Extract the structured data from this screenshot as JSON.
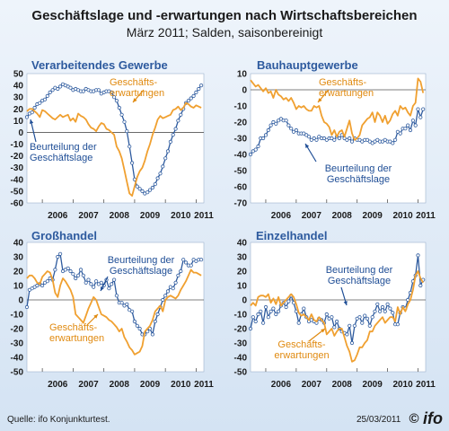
{
  "figure": {
    "title": "Geschäftslage und -erwartungen nach Wirtschaftsbereichen",
    "subtitle": "März 2011; Salden, saisonbereinigt",
    "source": "Quelle: ifo Konjunkturtest.",
    "date": "25/03/2011",
    "logo_text": "ifo",
    "copyright_symbol": "©"
  },
  "colors": {
    "lage": "#2d5a9e",
    "erwartungen": "#f0a030",
    "title_blue": "#2d5a9e",
    "annotation_lage": "#1f4e96",
    "annotation_erw": "#e08a10",
    "panel_bg": "#ffffff",
    "zero_line": "#555555"
  },
  "x_ticks": [
    "2006",
    "2007",
    "2008",
    "2009",
    "2010",
    "2011"
  ],
  "chart_data": [
    {
      "type": "line",
      "title": "Verarbeitendes Gewerbe",
      "ylim": [
        -60,
        50
      ],
      "y_ticks": [
        50,
        40,
        30,
        20,
        10,
        0,
        -10,
        -20,
        -30,
        -40,
        -50,
        -60
      ],
      "x": [
        "2005-07",
        "2005-08",
        "2005-09",
        "2005-10",
        "2005-11",
        "2005-12",
        "2006-01",
        "2006-02",
        "2006-03",
        "2006-04",
        "2006-05",
        "2006-06",
        "2006-07",
        "2006-08",
        "2006-09",
        "2006-10",
        "2006-11",
        "2006-12",
        "2007-01",
        "2007-02",
        "2007-03",
        "2007-04",
        "2007-05",
        "2007-06",
        "2007-07",
        "2007-08",
        "2007-09",
        "2007-10",
        "2007-11",
        "2007-12",
        "2008-01",
        "2008-02",
        "2008-03",
        "2008-04",
        "2008-05",
        "2008-06",
        "2008-07",
        "2008-08",
        "2008-09",
        "2008-10",
        "2008-11",
        "2008-12",
        "2009-01",
        "2009-02",
        "2009-03",
        "2009-04",
        "2009-05",
        "2009-06",
        "2009-07",
        "2009-08",
        "2009-09",
        "2009-10",
        "2009-11",
        "2009-12",
        "2010-01",
        "2010-02",
        "2010-03",
        "2010-04",
        "2010-05",
        "2010-06",
        "2010-07",
        "2010-08",
        "2010-09",
        "2010-10",
        "2010-11",
        "2010-12",
        "2011-01",
        "2011-02",
        "2011-03"
      ],
      "series": [
        {
          "name": "Beurteilung der Geschäftslage",
          "values": [
            13,
            16,
            17,
            21,
            24,
            25,
            27,
            28,
            31,
            34,
            36,
            38,
            37,
            39,
            41,
            40,
            39,
            38,
            36,
            37,
            36,
            35,
            35,
            37,
            36,
            35,
            35,
            36,
            36,
            33,
            34,
            35,
            35,
            34,
            30,
            27,
            21,
            15,
            9,
            1,
            -12,
            -26,
            -40,
            -46,
            -48,
            -50,
            -52,
            -51,
            -49,
            -47,
            -44,
            -39,
            -35,
            -29,
            -22,
            -16,
            -8,
            -2,
            3,
            10,
            15,
            20,
            25,
            27,
            29,
            31,
            34,
            37,
            40
          ]
        },
        {
          "name": "Geschäftserwartungen",
          "values": [
            18,
            20,
            20,
            18,
            16,
            13,
            19,
            18,
            16,
            14,
            12,
            11,
            13,
            15,
            13,
            14,
            15,
            10,
            12,
            9,
            16,
            14,
            13,
            11,
            7,
            4,
            3,
            1,
            5,
            8,
            7,
            3,
            2,
            0,
            -2,
            -12,
            -16,
            -22,
            -32,
            -42,
            -52,
            -54,
            -46,
            -38,
            -33,
            -30,
            -24,
            -16,
            -10,
            -2,
            4,
            11,
            14,
            12,
            13,
            14,
            15,
            19,
            20,
            22,
            19,
            21,
            25,
            24,
            22,
            21,
            23,
            22,
            21
          ]
        }
      ],
      "annotations": [
        {
          "text": "Geschäfts-",
          "series": "Geschäftserwartungen"
        },
        {
          "text": "erwartungen",
          "series": "Geschäftserwartungen"
        },
        {
          "text": "Beurteilung der",
          "series": "Beurteilung der Geschäftslage"
        },
        {
          "text": "Geschäftslage",
          "series": "Beurteilung der Geschäftslage"
        }
      ]
    },
    {
      "type": "line",
      "title": "Bauhauptgewerbe",
      "ylim": [
        -70,
        10
      ],
      "y_ticks": [
        10,
        0,
        -10,
        -20,
        -30,
        -40,
        -50,
        -60,
        -70
      ],
      "x": [
        "2005-07",
        "2005-08",
        "2005-09",
        "2005-10",
        "2005-11",
        "2005-12",
        "2006-01",
        "2006-02",
        "2006-03",
        "2006-04",
        "2006-05",
        "2006-06",
        "2006-07",
        "2006-08",
        "2006-09",
        "2006-10",
        "2006-11",
        "2006-12",
        "2007-01",
        "2007-02",
        "2007-03",
        "2007-04",
        "2007-05",
        "2007-06",
        "2007-07",
        "2007-08",
        "2007-09",
        "2007-10",
        "2007-11",
        "2007-12",
        "2008-01",
        "2008-02",
        "2008-03",
        "2008-04",
        "2008-05",
        "2008-06",
        "2008-07",
        "2008-08",
        "2008-09",
        "2008-10",
        "2008-11",
        "2008-12",
        "2009-01",
        "2009-02",
        "2009-03",
        "2009-04",
        "2009-05",
        "2009-06",
        "2009-07",
        "2009-08",
        "2009-09",
        "2009-10",
        "2009-11",
        "2009-12",
        "2010-01",
        "2010-02",
        "2010-03",
        "2010-04",
        "2010-05",
        "2010-06",
        "2010-07",
        "2010-08",
        "2010-09",
        "2010-10",
        "2010-11",
        "2010-12",
        "2011-01",
        "2011-02",
        "2011-03"
      ],
      "series": [
        {
          "name": "Beurteilung der Geschäftslage",
          "values": [
            -40,
            -38,
            -37,
            -35,
            -30,
            -30,
            -28,
            -25,
            -22,
            -20,
            -21,
            -19,
            -18,
            -19,
            -19,
            -22,
            -24,
            -26,
            -25,
            -27,
            -27,
            -27,
            -28,
            -29,
            -31,
            -30,
            -31,
            -29,
            -30,
            -30,
            -31,
            -30,
            -30,
            -31,
            -29,
            -30,
            -28,
            -30,
            -31,
            -30,
            -32,
            -30,
            -31,
            -31,
            -32,
            -31,
            -31,
            -32,
            -33,
            -32,
            -31,
            -32,
            -32,
            -31,
            -32,
            -32,
            -33,
            -31,
            -26,
            -27,
            -24,
            -24,
            -22,
            -25,
            -19,
            -22,
            -12,
            -17,
            -12
          ]
        },
        {
          "name": "Geschäftserwartungen",
          "values": [
            6,
            4,
            2,
            3,
            1,
            -1,
            1,
            -2,
            -1,
            -5,
            0,
            -3,
            -4,
            -6,
            -5,
            -7,
            -5,
            -8,
            -12,
            -10,
            -11,
            -10,
            -12,
            -13,
            -13,
            -10,
            -11,
            -10,
            -16,
            -20,
            -21,
            -23,
            -28,
            -25,
            -29,
            -26,
            -25,
            -29,
            -24,
            -19,
            -27,
            -31,
            -30,
            -28,
            -22,
            -20,
            -18,
            -17,
            -14,
            -20,
            -14,
            -16,
            -20,
            -16,
            -21,
            -19,
            -15,
            -13,
            -16,
            -10,
            -12,
            -11,
            -14,
            -16,
            -10,
            -8,
            7,
            5,
            -2
          ]
        }
      ],
      "annotations": [
        {
          "text": "Geschäfts-",
          "series": "Geschäftserwartungen"
        },
        {
          "text": "erwartungen",
          "series": "Geschäftserwartungen"
        },
        {
          "text": "Beurteilung der",
          "series": "Beurteilung der Geschäftslage"
        },
        {
          "text": "Geschäftslage",
          "series": "Beurteilung der Geschäftslage"
        }
      ]
    },
    {
      "type": "line",
      "title": "Großhandel",
      "ylim": [
        -50,
        40
      ],
      "y_ticks": [
        40,
        30,
        20,
        10,
        0,
        -10,
        -20,
        -30,
        -40,
        -50
      ],
      "x": [
        "2005-07",
        "2005-08",
        "2005-09",
        "2005-10",
        "2005-11",
        "2005-12",
        "2006-01",
        "2006-02",
        "2006-03",
        "2006-04",
        "2006-05",
        "2006-06",
        "2006-07",
        "2006-08",
        "2006-09",
        "2006-10",
        "2006-11",
        "2006-12",
        "2007-01",
        "2007-02",
        "2007-03",
        "2007-04",
        "2007-05",
        "2007-06",
        "2007-07",
        "2007-08",
        "2007-09",
        "2007-10",
        "2007-11",
        "2007-12",
        "2008-01",
        "2008-02",
        "2008-03",
        "2008-04",
        "2008-05",
        "2008-06",
        "2008-07",
        "2008-08",
        "2008-09",
        "2008-10",
        "2008-11",
        "2008-12",
        "2009-01",
        "2009-02",
        "2009-03",
        "2009-04",
        "2009-05",
        "2009-06",
        "2009-07",
        "2009-08",
        "2009-09",
        "2009-10",
        "2009-11",
        "2009-12",
        "2010-01",
        "2010-02",
        "2010-03",
        "2010-04",
        "2010-05",
        "2010-06",
        "2010-07",
        "2010-08",
        "2010-09",
        "2010-10",
        "2010-11",
        "2010-12",
        "2011-01",
        "2011-02",
        "2011-03"
      ],
      "series": [
        {
          "name": "Beurteilung der Geschäftslage",
          "values": [
            -5,
            7,
            8,
            9,
            10,
            11,
            10,
            12,
            13,
            15,
            14,
            21,
            30,
            32,
            20,
            21,
            22,
            20,
            18,
            15,
            17,
            21,
            17,
            12,
            14,
            11,
            9,
            13,
            11,
            12,
            10,
            14,
            8,
            11,
            14,
            3,
            -2,
            -2,
            -4,
            -3,
            -7,
            -8,
            -15,
            -18,
            -20,
            -24,
            -24,
            -22,
            -20,
            -24,
            -15,
            -10,
            -5,
            0,
            3,
            6,
            9,
            8,
            12,
            17,
            20,
            28,
            26,
            24,
            24,
            28,
            27,
            28,
            28
          ]
        },
        {
          "name": "Geschäftserwartungen",
          "values": [
            15,
            17,
            17,
            15,
            12,
            11,
            16,
            18,
            20,
            19,
            14,
            5,
            2,
            10,
            15,
            13,
            10,
            7,
            2,
            -10,
            -12,
            -14,
            -16,
            -11,
            -6,
            -2,
            2,
            0,
            -5,
            -10,
            -11,
            -12,
            -14,
            -15,
            -17,
            -19,
            -22,
            -20,
            -26,
            -29,
            -33,
            -35,
            -38,
            -37,
            -36,
            -32,
            -22,
            -20,
            -18,
            -14,
            -8,
            -6,
            -4,
            -8,
            0,
            2,
            3,
            2,
            1,
            3,
            7,
            10,
            13,
            17,
            21,
            19,
            19,
            18,
            17
          ]
        }
      ],
      "annotations": [
        {
          "text": "Beurteilung der",
          "series": "Beurteilung der Geschäftslage"
        },
        {
          "text": "Geschäftslage",
          "series": "Beurteilung der Geschäftslage"
        },
        {
          "text": "Geschäfts-",
          "series": "Geschäftserwartungen"
        },
        {
          "text": "erwartungen",
          "series": "Geschäftserwartungen"
        }
      ]
    },
    {
      "type": "line",
      "title": "Einzelhandel",
      "ylim": [
        -50,
        40
      ],
      "y_ticks": [
        40,
        30,
        20,
        10,
        0,
        -10,
        -20,
        -30,
        -40,
        -50
      ],
      "x": [
        "2005-07",
        "2005-08",
        "2005-09",
        "2005-10",
        "2005-11",
        "2005-12",
        "2006-01",
        "2006-02",
        "2006-03",
        "2006-04",
        "2006-05",
        "2006-06",
        "2006-07",
        "2006-08",
        "2006-09",
        "2006-10",
        "2006-11",
        "2006-12",
        "2007-01",
        "2007-02",
        "2007-03",
        "2007-04",
        "2007-05",
        "2007-06",
        "2007-07",
        "2007-08",
        "2007-09",
        "2007-10",
        "2007-11",
        "2007-12",
        "2008-01",
        "2008-02",
        "2008-03",
        "2008-04",
        "2008-05",
        "2008-06",
        "2008-07",
        "2008-08",
        "2008-09",
        "2008-10",
        "2008-11",
        "2008-12",
        "2009-01",
        "2009-02",
        "2009-03",
        "2009-04",
        "2009-05",
        "2009-06",
        "2009-07",
        "2009-08",
        "2009-09",
        "2009-10",
        "2009-11",
        "2009-12",
        "2010-01",
        "2010-02",
        "2010-03",
        "2010-04",
        "2010-05",
        "2010-06",
        "2010-07",
        "2010-08",
        "2010-09",
        "2010-10",
        "2010-11",
        "2010-12",
        "2011-01",
        "2011-02",
        "2011-03"
      ],
      "series": [
        {
          "name": "Beurteilung der Geschäftslage",
          "values": [
            -20,
            -12,
            -15,
            -10,
            -8,
            -16,
            -5,
            -12,
            -8,
            -6,
            -10,
            -8,
            -4,
            -2,
            -5,
            -1,
            3,
            -2,
            -8,
            -16,
            -10,
            -6,
            -12,
            -15,
            -14,
            -15,
            -16,
            -13,
            -14,
            -16,
            -10,
            -13,
            -12,
            -19,
            -15,
            -20,
            -22,
            -23,
            -24,
            -18,
            -30,
            -18,
            -13,
            -12,
            -16,
            -11,
            -13,
            -18,
            -12,
            -8,
            -3,
            -8,
            -5,
            -8,
            -3,
            -6,
            -9,
            -17,
            -17,
            -9,
            -5,
            -6,
            0,
            5,
            13,
            17,
            31,
            10,
            14
          ]
        },
        {
          "name": "Geschäftserwartungen",
          "values": [
            -4,
            -2,
            -4,
            2,
            3,
            3,
            2,
            4,
            -2,
            1,
            -3,
            2,
            -4,
            -2,
            0,
            2,
            4,
            2,
            -3,
            -9,
            -11,
            -10,
            -12,
            -14,
            -10,
            -14,
            -15,
            -12,
            -14,
            -16,
            -24,
            -22,
            -20,
            -25,
            -22,
            -20,
            -20,
            -26,
            -32,
            -36,
            -43,
            -42,
            -38,
            -33,
            -33,
            -30,
            -28,
            -22,
            -22,
            -18,
            -16,
            -14,
            -12,
            -16,
            -14,
            -12,
            -12,
            -15,
            -5,
            -10,
            -5,
            -8,
            -3,
            0,
            7,
            17,
            20,
            15,
            12
          ]
        }
      ],
      "annotations": [
        {
          "text": "Beurteilung der",
          "series": "Beurteilung der Geschäftslage"
        },
        {
          "text": "Geschäftslage",
          "series": "Beurteilung der Geschäftslage"
        },
        {
          "text": "Geschäfts-",
          "series": "Geschäftserwartungen"
        },
        {
          "text": "erwartungen",
          "series": "Geschäftserwartungen"
        }
      ]
    }
  ]
}
